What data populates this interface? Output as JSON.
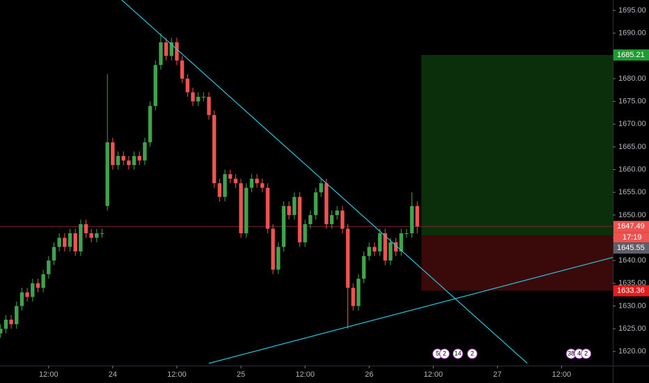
{
  "chart_data": {
    "type": "candlestick",
    "x": [
      -21,
      -20,
      -19,
      -18,
      -17,
      -16,
      -15,
      -14,
      -13,
      -12,
      -11,
      -10,
      -9,
      -8,
      -7,
      -6,
      -5,
      -4,
      -3,
      -2,
      -1,
      0,
      1,
      2,
      3,
      4,
      5,
      6,
      7,
      8,
      9,
      10,
      11,
      12,
      13,
      14,
      15,
      16,
      17,
      18,
      19,
      20,
      21,
      22,
      23,
      24,
      25,
      26,
      27,
      28,
      29,
      30,
      31,
      32,
      33,
      34,
      35,
      36,
      37,
      38,
      39,
      40,
      41,
      42,
      43,
      44,
      45,
      46,
      47,
      48,
      49,
      50,
      51,
      52,
      53,
      54,
      55,
      56,
      57
    ],
    "open": [
      1624,
      1625,
      1627,
      1626,
      1630,
      1633,
      1632,
      1635,
      1634,
      1637,
      1640,
      1643,
      1645,
      1643,
      1646,
      1642,
      1648,
      1646,
      1645,
      1646,
      1652,
      1666,
      1661,
      1663,
      1662,
      1661,
      1663,
      1662,
      1666,
      1674,
      1683,
      1688,
      1685,
      1688,
      1684,
      1680,
      1677,
      1675,
      1676,
      1676,
      1672,
      1657,
      1654,
      1659,
      1658,
      1657,
      1646,
      1656,
      1658,
      1657,
      1656,
      1647,
      1638,
      1643,
      1652,
      1650,
      1654,
      1644,
      1648,
      1650,
      1655,
      1657,
      1648,
      1650,
      1651,
      1647,
      1634,
      1630,
      1636,
      1641,
      1643,
      1642,
      1646,
      1640,
      1644,
      1642,
      1646,
      1646,
      1652
    ],
    "high": [
      1626,
      1628,
      1628,
      1631,
      1634,
      1634,
      1636,
      1636,
      1638,
      1641,
      1644,
      1646,
      1646,
      1647,
      1647,
      1649,
      1649,
      1647,
      1647,
      1647,
      1681,
      1667,
      1664,
      1664,
      1663,
      1664,
      1664,
      1667,
      1675,
      1684,
      1690,
      1689,
      1689,
      1689,
      1685,
      1681,
      1678,
      1677,
      1677,
      1677,
      1673,
      1658,
      1660,
      1660,
      1659,
      1658,
      1657,
      1659,
      1659,
      1658,
      1657,
      1648,
      1644,
      1653,
      1653,
      1655,
      1655,
      1649,
      1651,
      1656,
      1658,
      1658,
      1651,
      1652,
      1652,
      1648,
      1635,
      1637,
      1642,
      1644,
      1644,
      1647,
      1647,
      1645,
      1645,
      1647,
      1647,
      1655,
      1653
    ],
    "low": [
      1623,
      1624,
      1625,
      1625,
      1629,
      1631,
      1631,
      1633,
      1633,
      1636,
      1639,
      1642,
      1642,
      1642,
      1641,
      1641,
      1645,
      1644,
      1644,
      1645,
      1651,
      1660,
      1660,
      1661,
      1660,
      1660,
      1661,
      1661,
      1665,
      1673,
      1682,
      1684,
      1684,
      1683,
      1679,
      1676,
      1674,
      1674,
      1675,
      1671,
      1656,
      1653,
      1653,
      1657,
      1656,
      1645,
      1645,
      1655,
      1656,
      1655,
      1646,
      1637,
      1637,
      1642,
      1649,
      1649,
      1643,
      1643,
      1647,
      1649,
      1654,
      1647,
      1647,
      1649,
      1646,
      1625,
      1629,
      1629,
      1635,
      1640,
      1641,
      1641,
      1639,
      1639,
      1641,
      1641,
      1645,
      1645,
      1646
    ],
    "close": [
      1625,
      1627,
      1626,
      1630,
      1633,
      1632,
      1635,
      1634,
      1637,
      1640,
      1643,
      1645,
      1643,
      1646,
      1642,
      1648,
      1646,
      1645,
      1646,
      1646,
      1666,
      1661,
      1663,
      1662,
      1661,
      1663,
      1662,
      1666,
      1674,
      1683,
      1688,
      1685,
      1688,
      1684,
      1680,
      1677,
      1675,
      1676,
      1676,
      1672,
      1657,
      1654,
      1659,
      1658,
      1657,
      1646,
      1656,
      1658,
      1657,
      1656,
      1647,
      1638,
      1643,
      1652,
      1650,
      1654,
      1644,
      1648,
      1650,
      1655,
      1657,
      1648,
      1650,
      1651,
      1647,
      1634,
      1630,
      1636,
      1641,
      1643,
      1642,
      1646,
      1640,
      1644,
      1642,
      1646,
      1646,
      1652,
      1647.49
    ],
    "up_color": "#3fa34d",
    "down_color": "#ef5350",
    "xlim": [
      -21.1,
      93.6
    ],
    "xticks": [
      {
        "value": -12,
        "label": "12:00"
      },
      {
        "value": 0,
        "label": "24"
      },
      {
        "value": 12,
        "label": "12:00"
      },
      {
        "value": 24,
        "label": "25"
      },
      {
        "value": 36,
        "label": "12:00"
      },
      {
        "value": 48,
        "label": "26"
      },
      {
        "value": 60,
        "label": "12:00"
      },
      {
        "value": 72,
        "label": "27"
      },
      {
        "value": 84,
        "label": "12:00"
      }
    ],
    "ylim": [
      1616.9,
      1697.3
    ],
    "yticks": [
      {
        "value": 1620,
        "label": "1620.00"
      },
      {
        "value": 1625,
        "label": "1625.00"
      },
      {
        "value": 1630,
        "label": "1630.00"
      },
      {
        "value": 1635,
        "label": "1635.00"
      },
      {
        "value": 1640,
        "label": "1640.00"
      },
      {
        "value": 1645,
        "label": "1645.00"
      },
      {
        "value": 1650,
        "label": "1650.00"
      },
      {
        "value": 1655,
        "label": "1655.00"
      },
      {
        "value": 1660,
        "label": "1660.00"
      },
      {
        "value": 1665,
        "label": "1665.00"
      },
      {
        "value": 1670,
        "label": "1670.00"
      },
      {
        "value": 1675,
        "label": "1675.00"
      },
      {
        "value": 1680,
        "label": "1680.00"
      },
      {
        "value": 1685,
        "label": "1685.00"
      },
      {
        "value": 1690,
        "label": "1690.00"
      },
      {
        "value": 1695,
        "label": "1695.00"
      }
    ],
    "position": {
      "target": {
        "value": 1685.21,
        "label": "1685.21"
      },
      "entry": {
        "value": 1645.55,
        "label": "1645.55"
      },
      "stop": {
        "value": 1633.36,
        "label": "1633.36"
      }
    },
    "last_price_label": "1647.49",
    "countdown": "17:19",
    "trendlines": [
      {
        "x": [
          1.7,
          77.6
        ],
        "y": [
          1697.3,
          1617.4
        ],
        "color": "#26c6da"
      },
      {
        "x": [
          18,
          93.6
        ],
        "y": [
          1617.4,
          1640.7
        ],
        "color": "#26c6da"
      }
    ],
    "events": [
      {
        "x": 60.8,
        "label": "5"
      },
      {
        "x": 62.1,
        "label": "2"
      },
      {
        "x": 64.6,
        "label": "14"
      },
      {
        "x": 67.3,
        "label": "2"
      },
      {
        "x": 85.8,
        "label": "38"
      },
      {
        "x": 87.3,
        "label": "4"
      },
      {
        "x": 88.6,
        "label": "2"
      }
    ]
  }
}
